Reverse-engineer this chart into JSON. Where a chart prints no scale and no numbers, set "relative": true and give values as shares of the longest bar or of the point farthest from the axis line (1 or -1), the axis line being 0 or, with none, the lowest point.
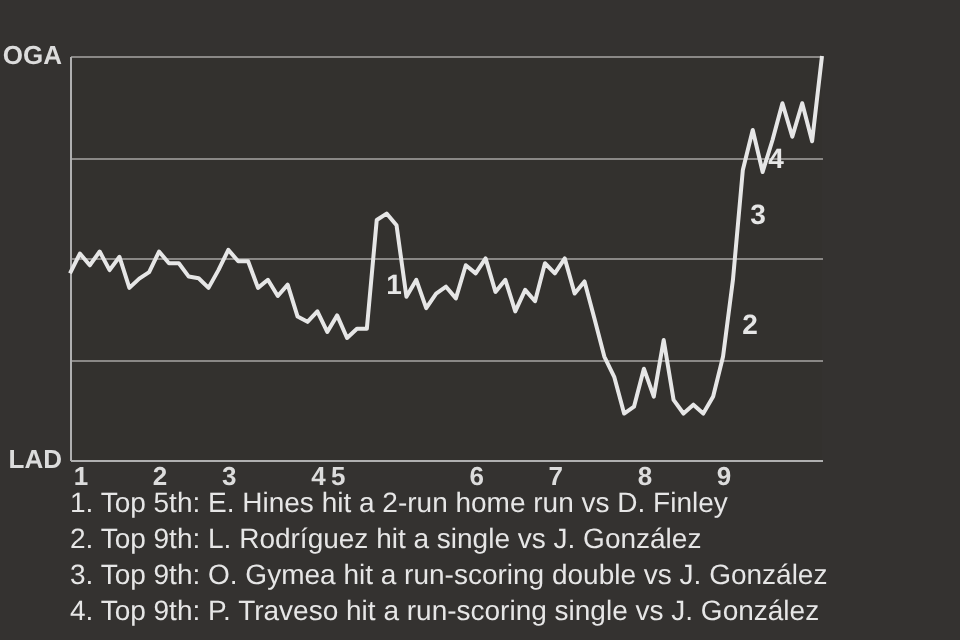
{
  "chart_data": {
    "type": "line",
    "relative": true,
    "categories": [
      null,
      "1",
      null,
      null,
      null,
      null,
      null,
      null,
      null,
      "2",
      null,
      null,
      null,
      null,
      null,
      null,
      "3",
      null,
      null,
      null,
      null,
      null,
      null,
      null,
      null,
      "4",
      null,
      "5",
      null,
      null,
      null,
      null,
      null,
      null,
      null,
      null,
      null,
      null,
      null,
      null,
      null,
      "6",
      null,
      null,
      null,
      null,
      null,
      null,
      null,
      "7",
      null,
      null,
      null,
      null,
      null,
      null,
      null,
      null,
      "8",
      null,
      null,
      null,
      null,
      null,
      null,
      null,
      "9",
      null,
      null,
      null,
      null,
      null,
      null,
      null,
      null,
      null,
      null
    ],
    "series": [
      {
        "color": "#e6e6e6",
        "values": [
          0.462,
          0.511,
          0.482,
          0.516,
          0.47,
          0.503,
          0.426,
          0.449,
          0.465,
          0.516,
          0.487,
          0.487,
          0.454,
          0.45,
          0.426,
          0.47,
          0.52,
          0.492,
          0.492,
          0.426,
          0.446,
          0.406,
          0.434,
          0.355,
          0.342,
          0.368,
          0.317,
          0.358,
          0.302,
          0.325,
          0.325,
          0.594,
          0.61,
          0.581,
          0.404,
          0.446,
          0.376,
          0.412,
          0.429,
          0.4,
          0.482,
          0.462,
          0.499,
          0.416,
          0.446,
          0.368,
          0.421,
          0.393,
          0.487,
          0.462,
          0.499,
          0.412,
          0.442,
          0.35,
          0.256,
          0.206,
          0.115,
          0.132,
          0.226,
          0.157,
          0.297,
          0.149,
          0.115,
          0.137,
          0.115,
          0.157,
          0.256,
          0.446,
          0.718,
          0.817,
          0.713,
          0.792,
          0.883,
          0.8,
          0.883,
          0.789,
          1
        ]
      }
    ],
    "grid": "y",
    "annotations": [
      "OGA",
      "LAD",
      "1",
      "2",
      "3",
      "4",
      "1. Top 5th: E. Hines hit a 2-run home run vs D. Finley",
      "2. Top 9th: L. Rodríguez hit a single vs J. González",
      "3. Top 9th: O. Gymea hit a run-scoring double vs J. González",
      "4. Top 9th: P. Traveso hit a run-scoring single vs J. González"
    ]
  }
}
